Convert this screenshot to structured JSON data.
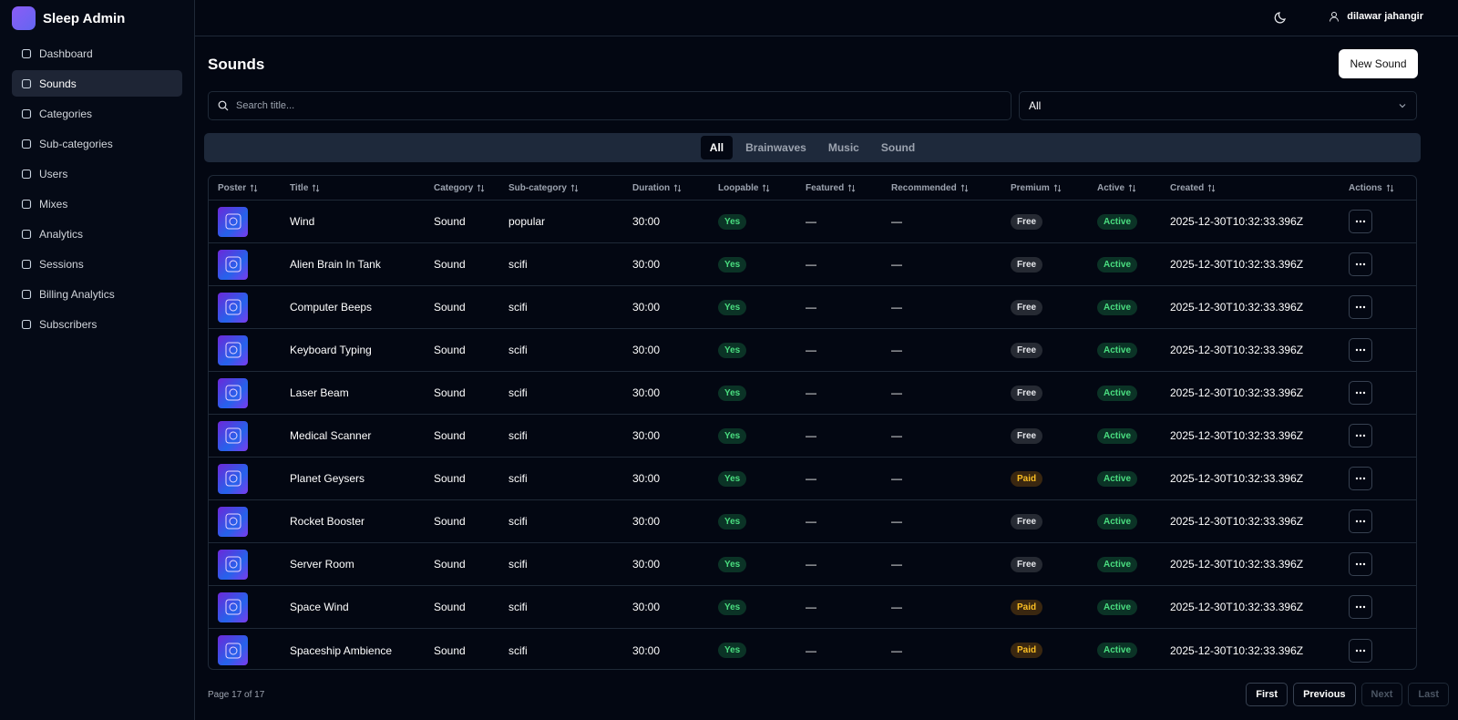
{
  "sidebar": {
    "brand": "Sleep Admin",
    "nav": [
      "Dashboard",
      "Sounds",
      "Categories",
      "Sub-categories",
      "Users",
      "Mixes",
      "Analytics",
      "Sessions",
      "Billing Analytics",
      "Subscribers"
    ]
  },
  "header": {
    "user": "dilawar jahangir"
  },
  "page": {
    "title": "Sounds",
    "new_button": "New Sound",
    "search_placeholder": "Search title...",
    "filter": "All",
    "tabs": [
      "All",
      "Brainwaves",
      "Music",
      "Sound"
    ]
  },
  "table": {
    "columns": [
      "Poster",
      "Title",
      "Category",
      "Sub-category",
      "Duration",
      "Loopable",
      "Featured",
      "Recommended",
      "Premium",
      "Active",
      "Created",
      "Actions"
    ],
    "rows": [
      [
        "Wind",
        "Sound",
        "popular",
        "30:00",
        "Yes",
        "—",
        "—",
        "Free",
        "Active",
        "2025-12-30T10:32:33.396Z"
      ],
      [
        "Alien Brain In Tank",
        "Sound",
        "scifi",
        "30:00",
        "Yes",
        "—",
        "—",
        "Free",
        "Active",
        "2025-12-30T10:32:33.396Z"
      ],
      [
        "Computer Beeps",
        "Sound",
        "scifi",
        "30:00",
        "Yes",
        "—",
        "—",
        "Free",
        "Active",
        "2025-12-30T10:32:33.396Z"
      ],
      [
        "Keyboard Typing",
        "Sound",
        "scifi",
        "30:00",
        "Yes",
        "—",
        "—",
        "Free",
        "Active",
        "2025-12-30T10:32:33.396Z"
      ],
      [
        "Laser Beam",
        "Sound",
        "scifi",
        "30:00",
        "Yes",
        "—",
        "—",
        "Free",
        "Active",
        "2025-12-30T10:32:33.396Z"
      ],
      [
        "Medical Scanner",
        "Sound",
        "scifi",
        "30:00",
        "Yes",
        "—",
        "—",
        "Free",
        "Active",
        "2025-12-30T10:32:33.396Z"
      ],
      [
        "Planet Geysers",
        "Sound",
        "scifi",
        "30:00",
        "Yes",
        "—",
        "—",
        "Paid",
        "Active",
        "2025-12-30T10:32:33.396Z"
      ],
      [
        "Rocket Booster",
        "Sound",
        "scifi",
        "30:00",
        "Yes",
        "—",
        "—",
        "Free",
        "Active",
        "2025-12-30T10:32:33.396Z"
      ],
      [
        "Server Room",
        "Sound",
        "scifi",
        "30:00",
        "Yes",
        "—",
        "—",
        "Free",
        "Active",
        "2025-12-30T10:32:33.396Z"
      ],
      [
        "Space Wind",
        "Sound",
        "scifi",
        "30:00",
        "Yes",
        "—",
        "—",
        "Paid",
        "Active",
        "2025-12-30T10:32:33.396Z"
      ],
      [
        "Spaceship Ambience",
        "Sound",
        "scifi",
        "30:00",
        "Yes",
        "—",
        "—",
        "Paid",
        "Active",
        "2025-12-30T10:32:33.396Z"
      ]
    ]
  },
  "pagination": {
    "status": "Page 17 of 17",
    "buttons": [
      "First",
      "Previous",
      "Next",
      "Last"
    ]
  }
}
